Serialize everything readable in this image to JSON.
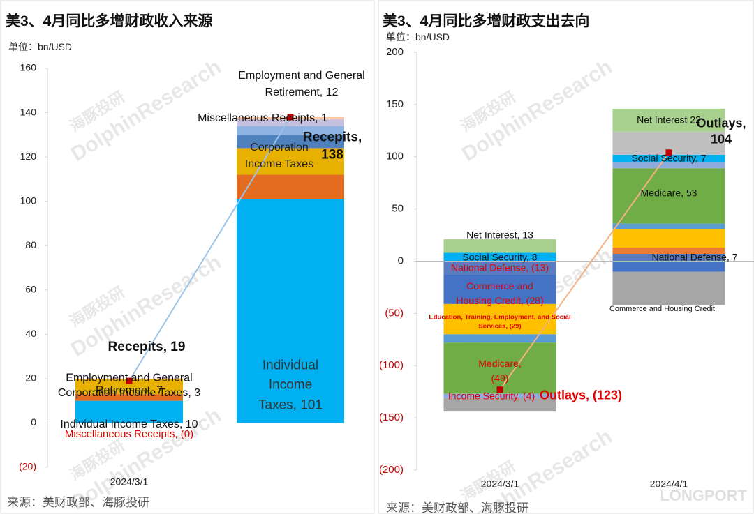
{
  "chart_data": [
    {
      "type": "bar",
      "stacked": true,
      "title": "美3、4月同比多增财政收入来源",
      "unit": "单位：bn/USD",
      "source": "来源：美财政部、海豚投研",
      "categories": [
        "2024/3/1",
        null
      ],
      "ylim": [
        -20,
        160
      ],
      "yticks": [
        {
          "value": -20,
          "label": "(20)"
        },
        0,
        20,
        40,
        60,
        80,
        100,
        120,
        140,
        160
      ],
      "annotations": [
        "Corporation Income Taxes"
      ],
      "series": [
        {
          "color": "#00b0f0",
          "values": [
            10,
            101
          ],
          "value_labels": [
            "Individual Income Taxes, 10",
            "Individual Income Taxes, 101"
          ]
        },
        {
          "color": "#e36c20",
          "values": [
            3,
            11
          ],
          "value_labels": [
            "Corporation Income Taxes, 3",
            null
          ]
        },
        {
          "color": "#e8b000",
          "values": [
            7,
            12
          ],
          "value_labels": [
            "Employment and General Retirement, 7",
            "Employment and General Retirement, 12"
          ]
        },
        {
          "color": "#4f81bd",
          "values": [
            0,
            6
          ]
        },
        {
          "color": "#8db3e2",
          "values": [
            0,
            4
          ]
        },
        {
          "color": "#c5c0e0",
          "values": [
            0,
            3
          ]
        },
        {
          "color": "#f9c8a8",
          "values": [
            0,
            1
          ],
          "value_labels": [
            "Miscellaneous Receipts, (0)",
            "Miscellaneous Receipts, 1"
          ]
        },
        {
          "type": "line",
          "color": "#9dc3e6",
          "marker_color": "#c00000",
          "values": [
            19,
            138
          ],
          "value_labels": [
            "Recepits, 19",
            "Recepits, 138"
          ]
        }
      ]
    },
    {
      "type": "bar",
      "stacked": true,
      "title": "美3、4月同比多增财政支出去向",
      "unit": "单位：bn/USD",
      "source": "来源：美财政部、海豚投研",
      "categories": [
        "2024/3/1",
        "2024/4/1"
      ],
      "ylim": [
        -200,
        200
      ],
      "yticks": [
        {
          "value": -200,
          "label": "(200)"
        },
        {
          "value": -150,
          "label": "(150)"
        },
        {
          "value": -100,
          "label": "(100)"
        },
        {
          "value": -50,
          "label": "(50)"
        },
        0,
        50,
        100,
        150,
        200
      ],
      "series": [
        {
          "color": "#5a7bbf",
          "values": [
            -13,
            7
          ],
          "value_labels": [
            "National Defense, (13)",
            "National Defense, 7"
          ]
        },
        {
          "color": "#ed7d31",
          "values": [
            0,
            6
          ]
        },
        {
          "color": "#4472c4",
          "values": [
            -28,
            -10
          ],
          "value_labels": [
            "Commerce and Housing Credit, (28)",
            "Commerce and Housing Credit,"
          ]
        },
        {
          "color": "#ffc000",
          "values": [
            -29,
            18
          ],
          "value_labels": [
            "Education, Training, Employment, and Social Services, (29)",
            null
          ]
        },
        {
          "color": "#5b9bd5",
          "values": [
            -8,
            5
          ]
        },
        {
          "color": "#70ad47",
          "values": [
            -49,
            53
          ],
          "value_labels": [
            "Medicare, (49)",
            "Medicare, 53"
          ]
        },
        {
          "color": "#8faadc",
          "values": [
            -4,
            6
          ],
          "value_labels": [
            "Income Security, (4)",
            null
          ]
        },
        {
          "color": "#00b0f0",
          "values": [
            8,
            7
          ],
          "value_labels": [
            "Social Security, 8",
            "Social Security, 7"
          ]
        },
        {
          "color": "#bfbfbf",
          "values": [
            0,
            22
          ]
        },
        {
          "color": "#a9d18e",
          "values": [
            13,
            22
          ],
          "value_labels": [
            "Net Interest, 13",
            "Net Interest 22"
          ]
        },
        {
          "color": "#a6a6a6",
          "values": [
            -13,
            -32
          ]
        },
        {
          "type": "line",
          "color": "#f4b183",
          "marker_color": "#c00000",
          "values": [
            -123,
            104
          ],
          "value_labels": [
            "Outlays, (123)",
            "Outlays, 104"
          ]
        }
      ]
    }
  ],
  "watermark": {
    "en": "DolphinResearch",
    "cn": "海豚投研"
  },
  "logo": "LONGPORT"
}
